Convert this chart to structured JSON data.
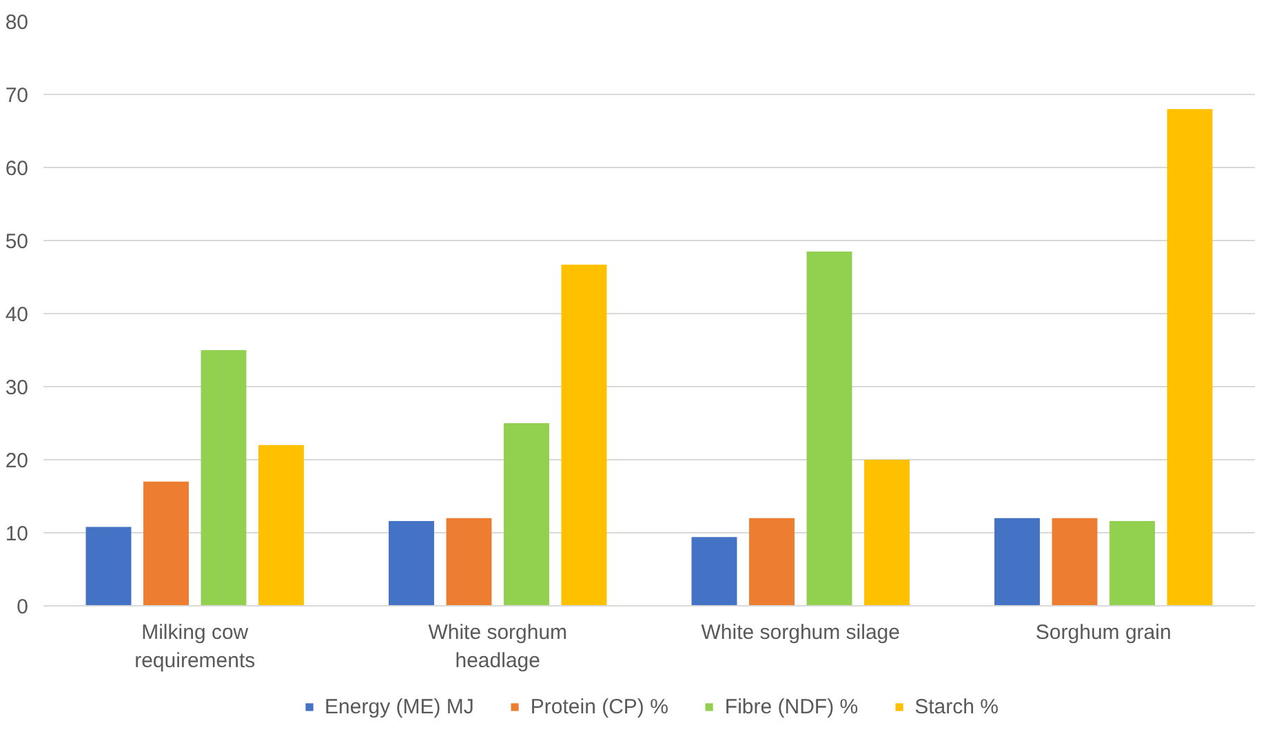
{
  "chart_data": {
    "type": "bar",
    "categories": [
      "Milking cow requirements",
      "White sorghum headlage",
      "White sorghum silage",
      "Sorghum grain"
    ],
    "series": [
      {
        "name": "Energy (ME) MJ",
        "color": "#4472c4",
        "values": [
          10.8,
          11.6,
          9.4,
          12
        ]
      },
      {
        "name": "Protein (CP) %",
        "color": "#ed7d31",
        "values": [
          17,
          12,
          12,
          12
        ]
      },
      {
        "name": "Fibre (NDF) %",
        "color": "#92d050",
        "values": [
          35,
          25,
          48.5,
          11.6
        ]
      },
      {
        "name": "Starch %",
        "color": "#ffc000",
        "values": [
          22,
          46.7,
          20,
          68
        ]
      }
    ],
    "ylim": [
      0,
      80
    ],
    "yticks": [
      0,
      10,
      20,
      30,
      40,
      50,
      60,
      70,
      80
    ],
    "grid": "y",
    "legend": "bottom"
  }
}
